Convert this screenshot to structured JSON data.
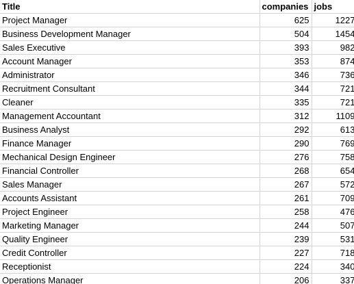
{
  "headers": {
    "title": "Title",
    "companies": "companies",
    "jobs": "jobs"
  },
  "rows": [
    {
      "title": "Project Manager",
      "companies": "625",
      "jobs": "1227"
    },
    {
      "title": "Business Development Manager",
      "companies": "504",
      "jobs": "1454"
    },
    {
      "title": "Sales Executive",
      "companies": "393",
      "jobs": "982"
    },
    {
      "title": "Account Manager",
      "companies": "353",
      "jobs": "874"
    },
    {
      "title": "Administrator",
      "companies": "346",
      "jobs": "736"
    },
    {
      "title": "Recruitment Consultant",
      "companies": "344",
      "jobs": "721"
    },
    {
      "title": "Cleaner",
      "companies": "335",
      "jobs": "721"
    },
    {
      "title": "Management Accountant",
      "companies": "312",
      "jobs": "1109"
    },
    {
      "title": "Business Analyst",
      "companies": "292",
      "jobs": "613"
    },
    {
      "title": "Finance Manager",
      "companies": "290",
      "jobs": "769"
    },
    {
      "title": "Mechanical Design Engineer",
      "companies": "276",
      "jobs": "758"
    },
    {
      "title": "Financial Controller",
      "companies": "268",
      "jobs": "654"
    },
    {
      "title": "Sales Manager",
      "companies": "267",
      "jobs": "572"
    },
    {
      "title": "Accounts Assistant",
      "companies": "261",
      "jobs": "709"
    },
    {
      "title": "Project Engineer",
      "companies": "258",
      "jobs": "476"
    },
    {
      "title": "Marketing Manager",
      "companies": "244",
      "jobs": "507"
    },
    {
      "title": "Quality Engineer",
      "companies": "239",
      "jobs": "531"
    },
    {
      "title": "Credit Controller",
      "companies": "227",
      "jobs": "718"
    },
    {
      "title": "Receptionist",
      "companies": "224",
      "jobs": "340"
    },
    {
      "title": "Operations Manager",
      "companies": "206",
      "jobs": "337"
    }
  ]
}
